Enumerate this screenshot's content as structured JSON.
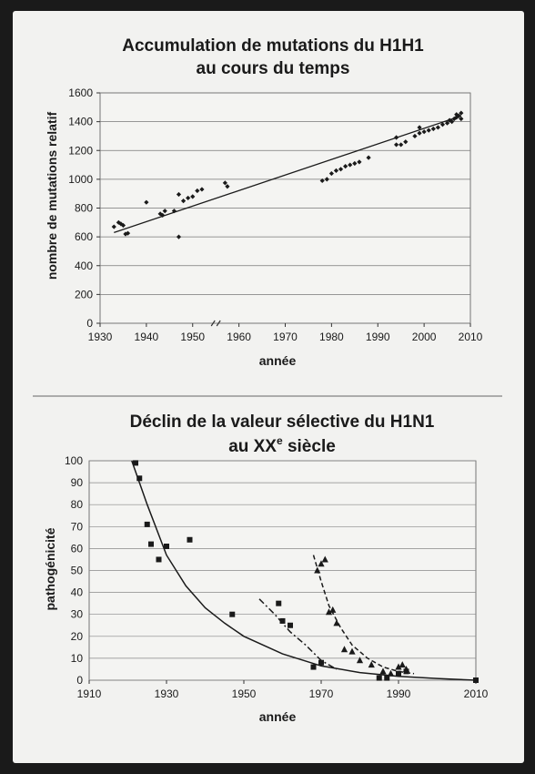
{
  "chart_data": [
    {
      "type": "scatter",
      "title_line1": "Accumulation de mutations du H1H1",
      "title_line2": "au cours du temps",
      "xlabel": "année",
      "ylabel": "nombre de mutations relatif",
      "x_tick_labels": [
        "1930",
        "1940",
        "1950",
        "1960",
        "1970",
        "1980",
        "1990",
        "2000",
        "2010"
      ],
      "axis_break_between": [
        "1950",
        "1960"
      ],
      "ylim": [
        0,
        1600
      ],
      "y_ticks": [
        0,
        200,
        400,
        600,
        800,
        1000,
        1200,
        1400,
        1600
      ],
      "grid": "horizontal",
      "series": [
        {
          "kind": "points",
          "points": [
            {
              "x": "1933",
              "y": 670
            },
            {
              "x": "1934",
              "y": 700
            },
            {
              "x": "1934.5",
              "y": 690
            },
            {
              "x": "1935",
              "y": 680
            },
            {
              "x": "1935.5",
              "y": 620
            },
            {
              "x": "1936",
              "y": 625
            },
            {
              "x": "1940",
              "y": 840
            },
            {
              "x": "1943",
              "y": 760
            },
            {
              "x": "1943.5",
              "y": 750
            },
            {
              "x": "1944",
              "y": 780
            },
            {
              "x": "1946",
              "y": 780
            },
            {
              "x": "1947",
              "y": 895
            },
            {
              "x": "1947",
              "y": 600
            },
            {
              "x": "1948",
              "y": 850
            },
            {
              "x": "1949",
              "y": 870
            },
            {
              "x": "1950",
              "y": 880
            },
            {
              "x": "1951",
              "y": 920
            },
            {
              "x": "1952",
              "y": 930
            },
            {
              "x": "1957",
              "y": 975
            },
            {
              "x": "1957.5",
              "y": 950
            },
            {
              "x": "1978",
              "y": 990
            },
            {
              "x": "1979",
              "y": 1000
            },
            {
              "x": "1980",
              "y": 1040
            },
            {
              "x": "1981",
              "y": 1060
            },
            {
              "x": "1982",
              "y": 1070
            },
            {
              "x": "1983",
              "y": 1090
            },
            {
              "x": "1984",
              "y": 1100
            },
            {
              "x": "1985",
              "y": 1110
            },
            {
              "x": "1986",
              "y": 1120
            },
            {
              "x": "1988",
              "y": 1150
            },
            {
              "x": "1994",
              "y": 1240
            },
            {
              "x": "1994",
              "y": 1290
            },
            {
              "x": "1995",
              "y": 1240
            },
            {
              "x": "1996",
              "y": 1260
            },
            {
              "x": "1998",
              "y": 1300
            },
            {
              "x": "1999",
              "y": 1320
            },
            {
              "x": "1999",
              "y": 1360
            },
            {
              "x": "2000",
              "y": 1330
            },
            {
              "x": "2001",
              "y": 1340
            },
            {
              "x": "2002",
              "y": 1350
            },
            {
              "x": "2003",
              "y": 1360
            },
            {
              "x": "2004",
              "y": 1380
            },
            {
              "x": "2005",
              "y": 1390
            },
            {
              "x": "2005.5",
              "y": 1410
            },
            {
              "x": "2006",
              "y": 1400
            },
            {
              "x": "2006.5",
              "y": 1420
            },
            {
              "x": "2007",
              "y": 1430
            },
            {
              "x": "2007",
              "y": 1450
            },
            {
              "x": "2007.5",
              "y": 1440
            },
            {
              "x": "2008",
              "y": 1460
            },
            {
              "x": "2008",
              "y": 1420
            }
          ]
        },
        {
          "kind": "trendline",
          "points": [
            {
              "x": "1933",
              "y": 630
            },
            {
              "x": "2008",
              "y": 1440
            }
          ]
        }
      ]
    },
    {
      "type": "scatter",
      "title_line1": "Déclin de la valeur sélective du H1N1",
      "title_line2_main": "au XX",
      "title_line2_sup": "e",
      "title_line2_end": " siècle",
      "xlabel": "année",
      "ylabel": "pathogénicité",
      "x_ticks": [
        1910,
        1930,
        1950,
        1970,
        1990,
        2010
      ],
      "xlim": [
        1910,
        2010
      ],
      "ylim": [
        0,
        100
      ],
      "y_ticks": [
        0,
        10,
        20,
        30,
        40,
        50,
        60,
        70,
        80,
        90,
        100
      ],
      "grid": "horizontal",
      "series": [
        {
          "marker": "square",
          "points": [
            [
              1922,
              99
            ],
            [
              1923,
              92
            ],
            [
              1925,
              71
            ],
            [
              1926,
              62
            ],
            [
              1928,
              55
            ],
            [
              1930,
              61
            ],
            [
              1936,
              64
            ],
            [
              1947,
              30
            ],
            [
              1959,
              35
            ],
            [
              1960,
              27
            ],
            [
              1962,
              25
            ],
            [
              1968,
              6
            ],
            [
              1970,
              8
            ],
            [
              1985,
              1
            ],
            [
              1987,
              1
            ],
            [
              1990,
              3
            ],
            [
              1992,
              4
            ],
            [
              2010,
              0
            ]
          ]
        },
        {
          "marker": "triangle",
          "points": [
            [
              1969,
              50
            ],
            [
              1970,
              53
            ],
            [
              1971,
              55
            ],
            [
              1972,
              31
            ],
            [
              1973,
              32
            ],
            [
              1974,
              26
            ],
            [
              1976,
              14
            ],
            [
              1978,
              13
            ],
            [
              1980,
              9
            ],
            [
              1983,
              7
            ],
            [
              1986,
              4
            ],
            [
              1988,
              3
            ],
            [
              1990,
              6
            ],
            [
              1991,
              7
            ],
            [
              1992,
              5
            ]
          ]
        },
        {
          "kind": "curve-solid",
          "points": [
            [
              1921,
              100
            ],
            [
              1925,
              80
            ],
            [
              1930,
              57
            ],
            [
              1935,
              43
            ],
            [
              1940,
              33
            ],
            [
              1945,
              26
            ],
            [
              1950,
              20
            ],
            [
              1960,
              12
            ],
            [
              1970,
              6.5
            ],
            [
              1980,
              3.5
            ],
            [
              1990,
              1.8
            ],
            [
              2000,
              0.8
            ],
            [
              2010,
              0
            ]
          ]
        },
        {
          "kind": "curve-dash-dot",
          "points": [
            [
              1954,
              37
            ],
            [
              1958,
              30
            ],
            [
              1962,
              22
            ],
            [
              1966,
              16
            ],
            [
              1970,
              9
            ],
            [
              1974,
              5
            ]
          ]
        },
        {
          "kind": "curve-dashed",
          "points": [
            [
              1968,
              57
            ],
            [
              1970,
              45
            ],
            [
              1972,
              34
            ],
            [
              1975,
              24
            ],
            [
              1978,
              16
            ],
            [
              1982,
              10
            ],
            [
              1986,
              6
            ],
            [
              1990,
              4
            ],
            [
              1994,
              3
            ]
          ]
        }
      ]
    }
  ]
}
